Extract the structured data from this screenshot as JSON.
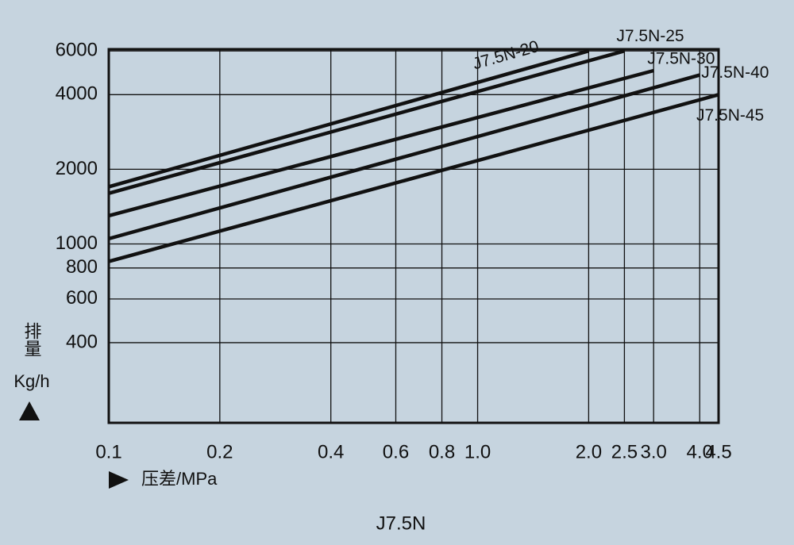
{
  "chart_data": {
    "type": "line",
    "title": "J7.5N",
    "ylabel": "排量",
    "yunit": "Kg/h",
    "xlabel": "压差/MPa",
    "xscale": "log",
    "yscale": "log",
    "grid": true,
    "xlim": [
      0.1,
      4.5
    ],
    "ylim": [
      190,
      6100
    ],
    "xticks": [
      {
        "value": 0.1,
        "label": "0.1"
      },
      {
        "value": 0.2,
        "label": "0.2"
      },
      {
        "value": 0.4,
        "label": "0.4"
      },
      {
        "value": 0.6,
        "label": "0.6"
      },
      {
        "value": 0.8,
        "label": "0.8"
      },
      {
        "value": 1,
        "label": "1.0"
      },
      {
        "value": 2,
        "label": "2.0"
      },
      {
        "value": 2.5,
        "label": "2.5"
      },
      {
        "value": 3,
        "label": "3.0"
      },
      {
        "value": 4,
        "label": "4.0"
      },
      {
        "value": 4.5,
        "label": "4.5"
      }
    ],
    "yticks": [
      400,
      600,
      800,
      1000,
      2000,
      4000,
      6000
    ],
    "series": [
      {
        "name": "J7.5N-20",
        "color": "#111111",
        "x": [
          0.1,
          2.0
        ],
        "values": [
          1700,
          6000
        ]
      },
      {
        "name": "J7.5N-25",
        "color": "#111111",
        "x": [
          0.1,
          2.5
        ],
        "values": [
          1600,
          6000
        ]
      },
      {
        "name": "J7.5N-30",
        "color": "#111111",
        "x": [
          0.1,
          3.0
        ],
        "values": [
          1300,
          5000
        ]
      },
      {
        "name": "J7.5N-40",
        "color": "#111111",
        "x": [
          0.1,
          4.0
        ],
        "values": [
          1050,
          4800
        ]
      },
      {
        "name": "J7.5N-45",
        "color": "#111111",
        "x": [
          0.1,
          4.5
        ],
        "values": [
          850,
          4000
        ]
      }
    ]
  }
}
